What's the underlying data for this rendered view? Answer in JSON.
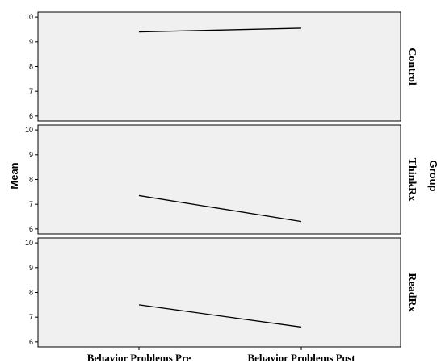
{
  "chart_data": {
    "type": "line",
    "categories": [
      "Behavior Problems Pre",
      "Behavior Problems Post"
    ],
    "ylabel": "Mean",
    "facet_label": "Group",
    "ylim": [
      5.8,
      10.2
    ],
    "yticks": [
      6,
      7,
      8,
      9,
      10
    ],
    "grid": false,
    "panels": [
      {
        "name": "Control",
        "values": [
          9.4,
          9.55
        ]
      },
      {
        "name": "ThinkRx",
        "values": [
          7.35,
          6.3
        ]
      },
      {
        "name": "ReadRx",
        "values": [
          7.5,
          6.6
        ]
      }
    ]
  },
  "colors": {
    "panel_background": "#f0f0f0",
    "line": "#000000"
  }
}
